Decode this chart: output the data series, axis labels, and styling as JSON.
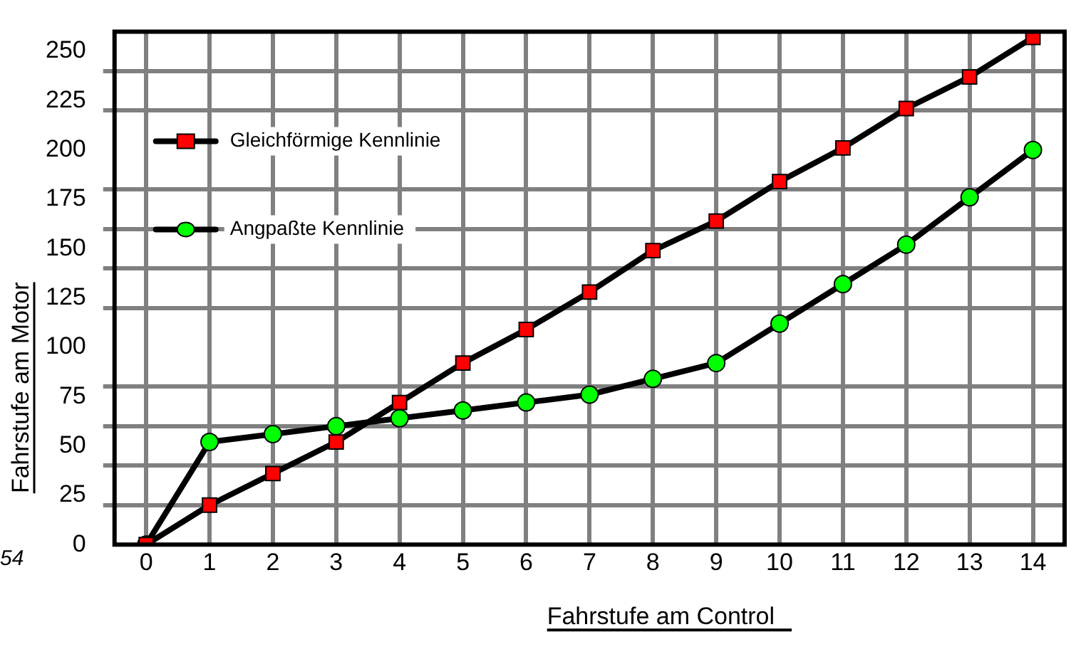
{
  "chart_data": {
    "type": "line",
    "xlabel": "Fahrstufe am Control",
    "ylabel": "Fahrstufe am Motor",
    "x": [
      0,
      1,
      2,
      3,
      4,
      5,
      6,
      7,
      8,
      9,
      10,
      11,
      12,
      13,
      14
    ],
    "series": [
      {
        "name": "Gleichförmige Kennlinie",
        "color": "#ff0000",
        "marker": "square",
        "values": [
          0,
          20,
          36,
          52,
          72,
          92,
          109,
          128,
          149,
          164,
          184,
          201,
          221,
          237,
          257
        ]
      },
      {
        "name": "Angpaßte Kennlinie",
        "color": "#00ff00",
        "marker": "circle",
        "values": [
          0,
          52,
          56,
          60,
          64,
          68,
          72,
          76,
          84,
          92,
          112,
          132,
          152,
          176,
          200
        ]
      }
    ],
    "xlim": [
      -0.5,
      14.5
    ],
    "xticks": [
      0,
      1,
      2,
      3,
      4,
      5,
      6,
      7,
      8,
      9,
      10,
      11,
      12,
      13,
      14
    ],
    "ylim": [
      0,
      260
    ],
    "yticks": [
      0,
      {
        "value": 20,
        "label": null
      },
      25,
      {
        "value": 40,
        "label": null
      },
      50,
      {
        "value": 60,
        "label": null
      },
      75,
      {
        "value": 80,
        "label": null
      },
      100,
      {
        "value": 120,
        "label": null
      },
      125,
      {
        "value": 140,
        "label": null
      },
      150,
      {
        "value": 160,
        "label": null
      },
      175,
      {
        "value": 180,
        "label": null
      },
      200,
      225,
      {
        "value": 220,
        "label": null
      },
      {
        "value": 240,
        "label": null
      },
      250
    ],
    "grid": true,
    "legend": "top left",
    "line_style": "solid",
    "annotations": [
      "54"
    ]
  }
}
